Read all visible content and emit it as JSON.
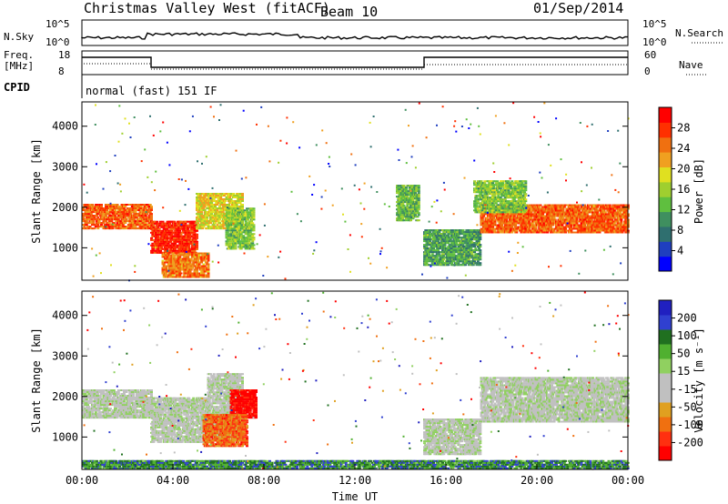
{
  "header": {
    "station": "Christmas Valley West (fitACF)",
    "beam": "Beam 10",
    "date": "01/Sep/2014"
  },
  "nsky_panel": {
    "left_label": "N.Sky",
    "left_ticks": [
      "10^5",
      "10^0"
    ],
    "right_label": "N.Search",
    "right_ticks": [
      "10^5",
      "10^0"
    ]
  },
  "freq_panel": {
    "left_label_1": "Freq.",
    "left_label_2": "[MHz]",
    "left_ticks": [
      "18",
      "8"
    ],
    "right_label": "Nave",
    "right_ticks": [
      "60",
      "0"
    ]
  },
  "cpid": {
    "label": "CPID",
    "text": "normal (fast) 151 IF"
  },
  "colors": {
    "power": [
      "#0000ff",
      "#1f3fbf",
      "#2f6f6f",
      "#3f8f5f",
      "#5fbf3f",
      "#9fcf2f",
      "#e0e020",
      "#f0a020",
      "#f07010",
      "#ff3000",
      "#ff0000"
    ],
    "velocity": [
      "#2020c0",
      "#3040d0",
      "#207020",
      "#50b030",
      "#90d060",
      "#c0c0c0",
      "#c0c0c0",
      "#e0a020",
      "#f07010",
      "#ff3010",
      "#ff0000"
    ]
  },
  "chart_data": [
    {
      "type": "heatmap",
      "name": "power",
      "xlabel": "",
      "ylabel": "Slant Range [km]",
      "yticks": [
        "4000",
        "3000",
        "2000",
        "1000"
      ],
      "ytick_values": [
        4000,
        3000,
        2000,
        1000
      ],
      "ylim": [
        200,
        4600
      ],
      "xlim": [
        0,
        24
      ],
      "colorbar_label": "Power [dB]",
      "colorbar_ticks": [
        "28",
        "24",
        "20",
        "16",
        "12",
        "8",
        "4"
      ],
      "colorbar_range": [
        0,
        32
      ],
      "bands": [
        {
          "t": [
            0,
            3
          ],
          "lo": 1500,
          "hi": 2100,
          "level": 0.8
        },
        {
          "t": [
            3,
            5
          ],
          "lo": 900,
          "hi": 1700,
          "level": 0.9
        },
        {
          "t": [
            5,
            7
          ],
          "lo": 1500,
          "hi": 2400,
          "level": 0.6
        },
        {
          "t": [
            6.3,
            7.5
          ],
          "lo": 1000,
          "hi": 2000,
          "level": 0.45
        },
        {
          "t": [
            3.5,
            5.5
          ],
          "lo": 300,
          "hi": 900,
          "level": 0.75
        },
        {
          "t": [
            13.8,
            14.8
          ],
          "lo": 1700,
          "hi": 2600,
          "level": 0.4
        },
        {
          "t": [
            15,
            17.5
          ],
          "lo": 600,
          "hi": 1500,
          "level": 0.35
        },
        {
          "t": [
            17.5,
            24
          ],
          "lo": 1400,
          "hi": 2100,
          "level": 0.8
        },
        {
          "t": [
            17.2,
            19.5
          ],
          "lo": 1900,
          "hi": 2700,
          "level": 0.45
        }
      ]
    },
    {
      "type": "heatmap",
      "name": "velocity",
      "xlabel": "Time UT",
      "ylabel": "Slant Range [km]",
      "xticks": [
        "00:00",
        "04:00",
        "08:00",
        "12:00",
        "16:00",
        "20:00",
        "00:00"
      ],
      "xtick_values": [
        0,
        4,
        8,
        12,
        16,
        20,
        24
      ],
      "yticks": [
        "4000",
        "3000",
        "2000",
        "1000"
      ],
      "ytick_values": [
        4000,
        3000,
        2000,
        1000
      ],
      "ylim": [
        200,
        4600
      ],
      "xlim": [
        0,
        24
      ],
      "colorbar_label": "Velocity [m s⁻¹]",
      "colorbar_ticks": [
        "200",
        "100",
        "50",
        "15",
        "-15",
        "-50",
        "-100",
        "-200"
      ],
      "bands": [
        {
          "t": [
            0,
            3
          ],
          "lo": 1500,
          "hi": 2200,
          "level": 0.5
        },
        {
          "t": [
            3,
            5.5
          ],
          "lo": 900,
          "hi": 2000,
          "level": 0.5
        },
        {
          "t": [
            5.5,
            7
          ],
          "lo": 1000,
          "hi": 2600,
          "level": 0.5
        },
        {
          "t": [
            6.5,
            7.6
          ],
          "lo": 1500,
          "hi": 2200,
          "level": 0.97
        },
        {
          "t": [
            5.3,
            7.2
          ],
          "lo": 800,
          "hi": 1600,
          "level": 0.8
        },
        {
          "t": [
            15,
            17.5
          ],
          "lo": 600,
          "hi": 1500,
          "level": 0.5
        },
        {
          "t": [
            17.5,
            24
          ],
          "lo": 1400,
          "hi": 2500,
          "level": 0.5
        },
        {
          "t": [
            0,
            24
          ],
          "lo": 250,
          "hi": 450,
          "level": 0.25
        }
      ]
    }
  ]
}
